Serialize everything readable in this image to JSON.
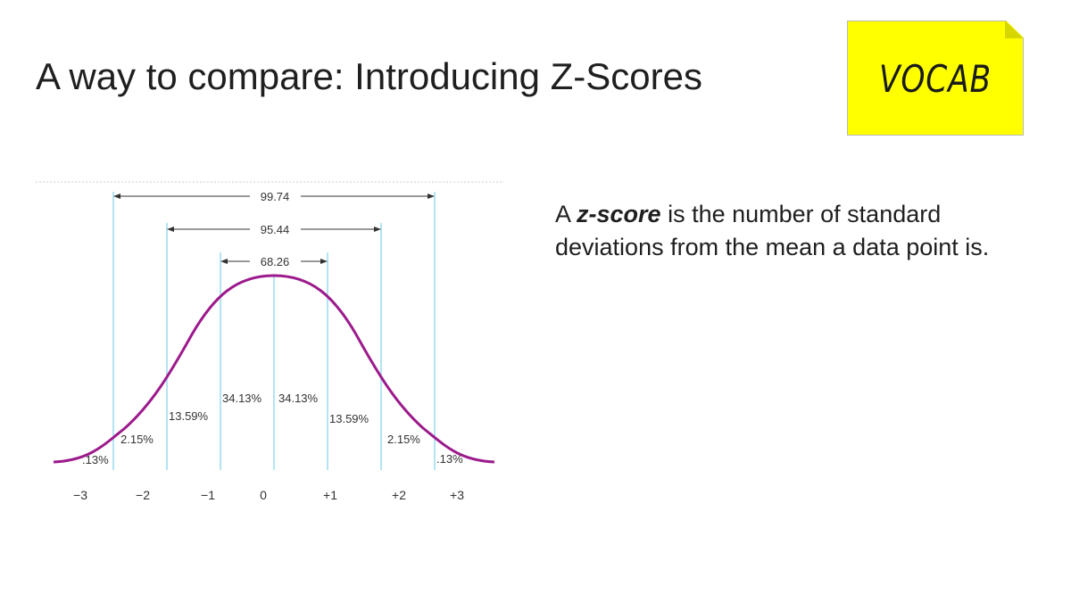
{
  "slide": {
    "title": "A way to compare: Introducing Z-Scores",
    "vocab_label": "VOCAB",
    "definition": {
      "prefix": "A ",
      "term": "z-score",
      "suffix": " is the number of standard deviations from the mean a data point is."
    }
  },
  "diagram": {
    "ranges": [
      {
        "label": "99.74",
        "from": "-3",
        "to": "+3"
      },
      {
        "label": "95.44",
        "from": "-2",
        "to": "+2"
      },
      {
        "label": "68.26",
        "from": "-1",
        "to": "+1"
      }
    ],
    "region_labels": [
      ".13%",
      "2.15%",
      "13.59%",
      "34.13%",
      "34.13%",
      "13.59%",
      "2.15%",
      ".13%"
    ],
    "axis_labels": [
      "−3",
      "−2",
      "−1",
      "0",
      "+1",
      "+2",
      "+3"
    ],
    "colors": {
      "curve": "#9c1a8c",
      "guides": "#7fd3e8",
      "text": "#333333"
    }
  }
}
